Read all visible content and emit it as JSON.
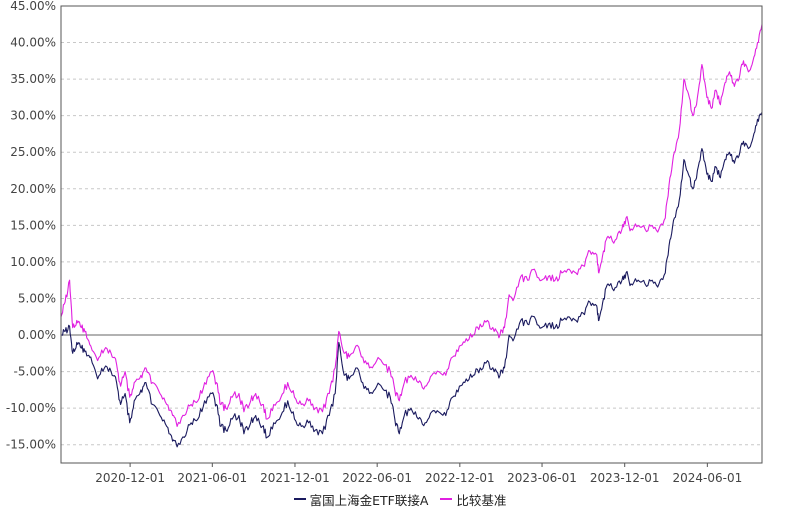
{
  "chart_data": {
    "type": "line",
    "title": "",
    "xlabel": "",
    "ylabel": "",
    "ylim": [
      -17.5,
      45
    ],
    "yticks": [
      -15,
      -10,
      -5,
      0,
      5,
      10,
      15,
      20,
      25,
      30,
      35,
      40,
      45
    ],
    "ytick_labels": [
      "-15.00%",
      "-10.00%",
      "-5.00%",
      "0.00%",
      "5.00%",
      "10.00%",
      "15.00%",
      "20.00%",
      "25.00%",
      "30.00%",
      "35.00%",
      "40.00%",
      "45.00%"
    ],
    "xlim": [
      "2020-07-01",
      "2024-09-30"
    ],
    "xticks": [
      "2020-12-01",
      "2021-06-01",
      "2021-12-01",
      "2022-06-01",
      "2022-12-01",
      "2023-06-01",
      "2023-12-01",
      "2024-06-01"
    ],
    "grid": true,
    "legend_position": "bottom-center",
    "series": [
      {
        "name": "富国上海金ETF联接A",
        "color": "#1a1a5e",
        "points": [
          [
            "2020-07-01",
            0.0
          ],
          [
            "2020-07-10",
            0.5
          ],
          [
            "2020-07-20",
            1.2
          ],
          [
            "2020-07-27",
            -2.5
          ],
          [
            "2020-08-05",
            -1.0
          ],
          [
            "2020-08-15",
            -1.8
          ],
          [
            "2020-08-25",
            -2.2
          ],
          [
            "2020-09-05",
            -3.0
          ],
          [
            "2020-09-20",
            -6.0
          ],
          [
            "2020-10-05",
            -4.5
          ],
          [
            "2020-10-20",
            -5.0
          ],
          [
            "2020-11-01",
            -6.5
          ],
          [
            "2020-11-10",
            -9.5
          ],
          [
            "2020-11-20",
            -8.0
          ],
          [
            "2020-11-30",
            -12.0
          ],
          [
            "2020-12-10",
            -9.0
          ],
          [
            "2020-12-25",
            -7.5
          ],
          [
            "2021-01-05",
            -6.5
          ],
          [
            "2021-01-20",
            -9.5
          ],
          [
            "2021-02-05",
            -11.0
          ],
          [
            "2021-02-20",
            -12.5
          ],
          [
            "2021-03-05",
            -14.5
          ],
          [
            "2021-03-15",
            -15.3
          ],
          [
            "2021-03-31",
            -14.0
          ],
          [
            "2021-04-15",
            -12.0
          ],
          [
            "2021-04-30",
            -11.5
          ],
          [
            "2021-05-15",
            -9.0
          ],
          [
            "2021-05-31",
            -8.0
          ],
          [
            "2021-06-10",
            -9.5
          ],
          [
            "2021-06-20",
            -12.5
          ],
          [
            "2021-07-01",
            -13.0
          ],
          [
            "2021-07-15",
            -11.5
          ],
          [
            "2021-07-30",
            -11.0
          ],
          [
            "2021-08-10",
            -13.5
          ],
          [
            "2021-08-25",
            -12.0
          ],
          [
            "2021-09-05",
            -11.0
          ],
          [
            "2021-09-20",
            -12.5
          ],
          [
            "2021-09-30",
            -14.0
          ],
          [
            "2021-10-15",
            -12.0
          ],
          [
            "2021-10-31",
            -11.0
          ],
          [
            "2021-11-15",
            -9.0
          ],
          [
            "2021-11-30",
            -11.5
          ],
          [
            "2021-12-15",
            -12.5
          ],
          [
            "2021-12-31",
            -12.0
          ],
          [
            "2022-01-15",
            -13.0
          ],
          [
            "2022-01-31",
            -13.5
          ],
          [
            "2022-02-15",
            -11.0
          ],
          [
            "2022-02-28",
            -8.0
          ],
          [
            "2022-03-08",
            -1.0
          ],
          [
            "2022-03-20",
            -5.5
          ],
          [
            "2022-03-31",
            -6.0
          ],
          [
            "2022-04-15",
            -4.5
          ],
          [
            "2022-04-30",
            -6.5
          ],
          [
            "2022-05-15",
            -8.0
          ],
          [
            "2022-05-31",
            -7.0
          ],
          [
            "2022-06-15",
            -7.5
          ],
          [
            "2022-06-30",
            -8.5
          ],
          [
            "2022-07-10",
            -11.5
          ],
          [
            "2022-07-20",
            -13.5
          ],
          [
            "2022-07-31",
            -11.0
          ],
          [
            "2022-08-15",
            -10.0
          ],
          [
            "2022-08-31",
            -11.5
          ],
          [
            "2022-09-15",
            -12.0
          ],
          [
            "2022-09-30",
            -10.5
          ],
          [
            "2022-10-15",
            -10.5
          ],
          [
            "2022-10-31",
            -11.0
          ],
          [
            "2022-11-15",
            -8.5
          ],
          [
            "2022-11-30",
            -7.0
          ],
          [
            "2022-12-15",
            -6.0
          ],
          [
            "2022-12-31",
            -5.5
          ],
          [
            "2023-01-15",
            -4.5
          ],
          [
            "2023-01-31",
            -3.5
          ],
          [
            "2023-02-15",
            -5.0
          ],
          [
            "2023-02-28",
            -5.5
          ],
          [
            "2023-03-10",
            -4.5
          ],
          [
            "2023-03-20",
            0.0
          ],
          [
            "2023-03-31",
            -0.5
          ],
          [
            "2023-04-15",
            2.0
          ],
          [
            "2023-04-30",
            1.5
          ],
          [
            "2023-05-15",
            2.5
          ],
          [
            "2023-05-31",
            1.0
          ],
          [
            "2023-06-15",
            1.5
          ],
          [
            "2023-06-30",
            1.0
          ],
          [
            "2023-07-15",
            2.0
          ],
          [
            "2023-07-31",
            2.5
          ],
          [
            "2023-08-15",
            2.0
          ],
          [
            "2023-08-31",
            3.0
          ],
          [
            "2023-09-15",
            4.5
          ],
          [
            "2023-09-30",
            4.0
          ],
          [
            "2023-10-05",
            2.0
          ],
          [
            "2023-10-15",
            5.0
          ],
          [
            "2023-10-25",
            7.0
          ],
          [
            "2023-11-10",
            6.5
          ],
          [
            "2023-11-25",
            7.5
          ],
          [
            "2023-12-04",
            8.5
          ],
          [
            "2023-12-15",
            7.0
          ],
          [
            "2023-12-31",
            7.5
          ],
          [
            "2024-01-15",
            7.0
          ],
          [
            "2024-01-31",
            7.5
          ],
          [
            "2024-02-15",
            7.0
          ],
          [
            "2024-02-29",
            8.5
          ],
          [
            "2024-03-10",
            13.0
          ],
          [
            "2024-03-20",
            16.0
          ],
          [
            "2024-03-31",
            18.5
          ],
          [
            "2024-04-10",
            24.0
          ],
          [
            "2024-04-20",
            22.0
          ],
          [
            "2024-04-30",
            20.0
          ],
          [
            "2024-05-10",
            22.5
          ],
          [
            "2024-05-20",
            25.5
          ],
          [
            "2024-05-31",
            22.0
          ],
          [
            "2024-06-10",
            21.0
          ],
          [
            "2024-06-20",
            23.0
          ],
          [
            "2024-06-30",
            21.5
          ],
          [
            "2024-07-10",
            24.0
          ],
          [
            "2024-07-20",
            25.0
          ],
          [
            "2024-07-31",
            23.5
          ],
          [
            "2024-08-10",
            24.5
          ],
          [
            "2024-08-20",
            26.5
          ],
          [
            "2024-08-31",
            25.5
          ],
          [
            "2024-09-10",
            27.0
          ],
          [
            "2024-09-20",
            29.5
          ],
          [
            "2024-09-30",
            30.5
          ]
        ]
      },
      {
        "name": "比较基准",
        "color": "#e020e0",
        "points": [
          [
            "2020-07-01",
            2.5
          ],
          [
            "2020-07-10",
            4.5
          ],
          [
            "2020-07-20",
            7.5
          ],
          [
            "2020-07-27",
            1.0
          ],
          [
            "2020-08-05",
            2.0
          ],
          [
            "2020-08-15",
            1.0
          ],
          [
            "2020-08-25",
            0.5
          ],
          [
            "2020-09-05",
            -1.5
          ],
          [
            "2020-09-20",
            -3.5
          ],
          [
            "2020-10-05",
            -2.0
          ],
          [
            "2020-10-20",
            -2.5
          ],
          [
            "2020-11-01",
            -4.0
          ],
          [
            "2020-11-10",
            -7.0
          ],
          [
            "2020-11-20",
            -5.0
          ],
          [
            "2020-11-30",
            -8.5
          ],
          [
            "2020-12-10",
            -6.5
          ],
          [
            "2020-12-25",
            -5.5
          ],
          [
            "2021-01-05",
            -4.5
          ],
          [
            "2021-01-20",
            -6.5
          ],
          [
            "2021-02-05",
            -8.0
          ],
          [
            "2021-02-20",
            -9.5
          ],
          [
            "2021-03-05",
            -11.0
          ],
          [
            "2021-03-15",
            -12.5
          ],
          [
            "2021-03-31",
            -11.0
          ],
          [
            "2021-04-15",
            -9.5
          ],
          [
            "2021-04-30",
            -9.0
          ],
          [
            "2021-05-15",
            -6.5
          ],
          [
            "2021-05-31",
            -5.0
          ],
          [
            "2021-06-10",
            -6.5
          ],
          [
            "2021-06-20",
            -9.5
          ],
          [
            "2021-07-01",
            -10.0
          ],
          [
            "2021-07-15",
            -8.5
          ],
          [
            "2021-07-30",
            -8.0
          ],
          [
            "2021-08-10",
            -10.5
          ],
          [
            "2021-08-25",
            -9.0
          ],
          [
            "2021-09-05",
            -8.0
          ],
          [
            "2021-09-20",
            -9.5
          ],
          [
            "2021-09-30",
            -11.5
          ],
          [
            "2021-10-15",
            -9.5
          ],
          [
            "2021-10-31",
            -8.5
          ],
          [
            "2021-11-15",
            -6.5
          ],
          [
            "2021-11-30",
            -8.5
          ],
          [
            "2021-12-15",
            -9.5
          ],
          [
            "2021-12-31",
            -9.0
          ],
          [
            "2022-01-15",
            -10.0
          ],
          [
            "2022-01-31",
            -10.5
          ],
          [
            "2022-02-15",
            -8.0
          ],
          [
            "2022-02-28",
            -4.5
          ],
          [
            "2022-03-08",
            0.5
          ],
          [
            "2022-03-20",
            -2.5
          ],
          [
            "2022-03-31",
            -3.0
          ],
          [
            "2022-04-15",
            -1.5
          ],
          [
            "2022-04-30",
            -3.0
          ],
          [
            "2022-05-15",
            -4.5
          ],
          [
            "2022-05-31",
            -3.5
          ],
          [
            "2022-06-15",
            -4.0
          ],
          [
            "2022-06-30",
            -5.0
          ],
          [
            "2022-07-10",
            -7.5
          ],
          [
            "2022-07-20",
            -9.0
          ],
          [
            "2022-07-31",
            -6.5
          ],
          [
            "2022-08-15",
            -5.5
          ],
          [
            "2022-08-31",
            -6.5
          ],
          [
            "2022-09-15",
            -7.0
          ],
          [
            "2022-09-30",
            -5.5
          ],
          [
            "2022-10-15",
            -5.0
          ],
          [
            "2022-10-31",
            -5.5
          ],
          [
            "2022-11-15",
            -3.0
          ],
          [
            "2022-11-30",
            -1.5
          ],
          [
            "2022-12-15",
            -0.5
          ],
          [
            "2022-12-31",
            0.0
          ],
          [
            "2023-01-15",
            1.5
          ],
          [
            "2023-01-31",
            2.0
          ],
          [
            "2023-02-15",
            0.5
          ],
          [
            "2023-02-28",
            0.0
          ],
          [
            "2023-03-10",
            1.0
          ],
          [
            "2023-03-20",
            5.5
          ],
          [
            "2023-03-31",
            5.0
          ],
          [
            "2023-04-15",
            8.0
          ],
          [
            "2023-04-30",
            7.5
          ],
          [
            "2023-05-15",
            9.0
          ],
          [
            "2023-05-31",
            7.5
          ],
          [
            "2023-06-15",
            8.0
          ],
          [
            "2023-06-30",
            7.5
          ],
          [
            "2023-07-15",
            8.5
          ],
          [
            "2023-07-31",
            9.0
          ],
          [
            "2023-08-15",
            8.5
          ],
          [
            "2023-08-31",
            9.5
          ],
          [
            "2023-09-15",
            11.5
          ],
          [
            "2023-09-30",
            11.0
          ],
          [
            "2023-10-05",
            8.5
          ],
          [
            "2023-10-15",
            11.5
          ],
          [
            "2023-10-25",
            13.5
          ],
          [
            "2023-11-10",
            13.0
          ],
          [
            "2023-11-25",
            14.5
          ],
          [
            "2023-12-04",
            16.0
          ],
          [
            "2023-12-15",
            14.5
          ],
          [
            "2023-12-31",
            15.0
          ],
          [
            "2024-01-15",
            14.5
          ],
          [
            "2024-01-31",
            15.0
          ],
          [
            "2024-02-15",
            14.5
          ],
          [
            "2024-02-29",
            16.0
          ],
          [
            "2024-03-10",
            21.5
          ],
          [
            "2024-03-20",
            25.0
          ],
          [
            "2024-03-31",
            28.0
          ],
          [
            "2024-04-10",
            35.0
          ],
          [
            "2024-04-20",
            33.0
          ],
          [
            "2024-04-30",
            30.0
          ],
          [
            "2024-05-10",
            32.5
          ],
          [
            "2024-05-20",
            37.0
          ],
          [
            "2024-05-31",
            32.5
          ],
          [
            "2024-06-10",
            31.0
          ],
          [
            "2024-06-20",
            33.5
          ],
          [
            "2024-06-30",
            31.5
          ],
          [
            "2024-07-10",
            34.5
          ],
          [
            "2024-07-20",
            36.0
          ],
          [
            "2024-07-31",
            34.0
          ],
          [
            "2024-08-10",
            35.0
          ],
          [
            "2024-08-20",
            37.5
          ],
          [
            "2024-08-31",
            36.0
          ],
          [
            "2024-09-10",
            37.5
          ],
          [
            "2024-09-20",
            40.0
          ],
          [
            "2024-09-30",
            42.5
          ]
        ]
      }
    ]
  }
}
